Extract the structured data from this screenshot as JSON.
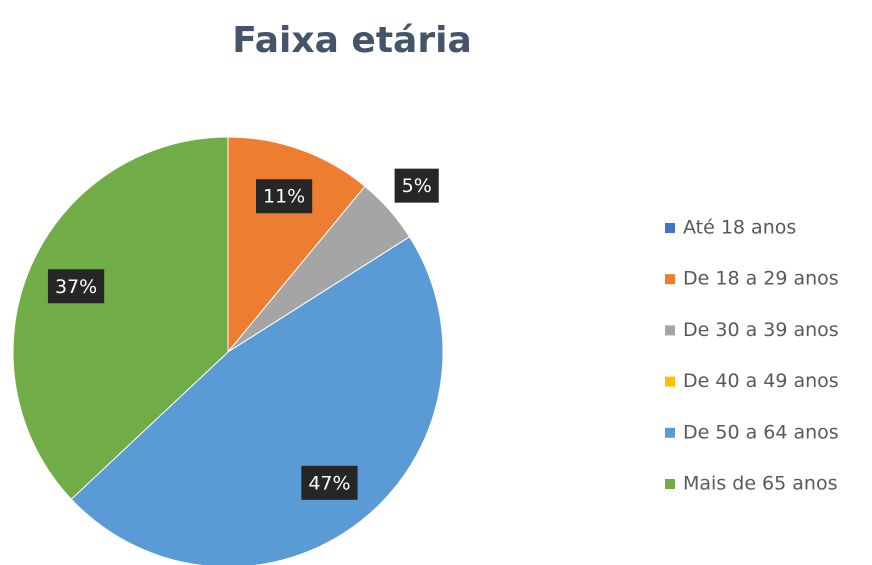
{
  "chart_data": {
    "type": "pie",
    "title": "Faixa etária",
    "categories": [
      "Até 18 anos",
      "De 18 a 29 anos",
      "De 30 a 39 anos",
      "De 40 a 49 anos",
      "De 50 a 64 anos",
      "Mais de 65 anos"
    ],
    "values": [
      0,
      11,
      5,
      0,
      47,
      37
    ],
    "value_labels": [
      null,
      "11%",
      "5%",
      null,
      "47%",
      "37%"
    ],
    "colors": [
      "#4472c4",
      "#ed7d31",
      "#a5a5a5",
      "#ffc000",
      "#5b9bd5",
      "#70ad47"
    ],
    "legend": "right"
  }
}
